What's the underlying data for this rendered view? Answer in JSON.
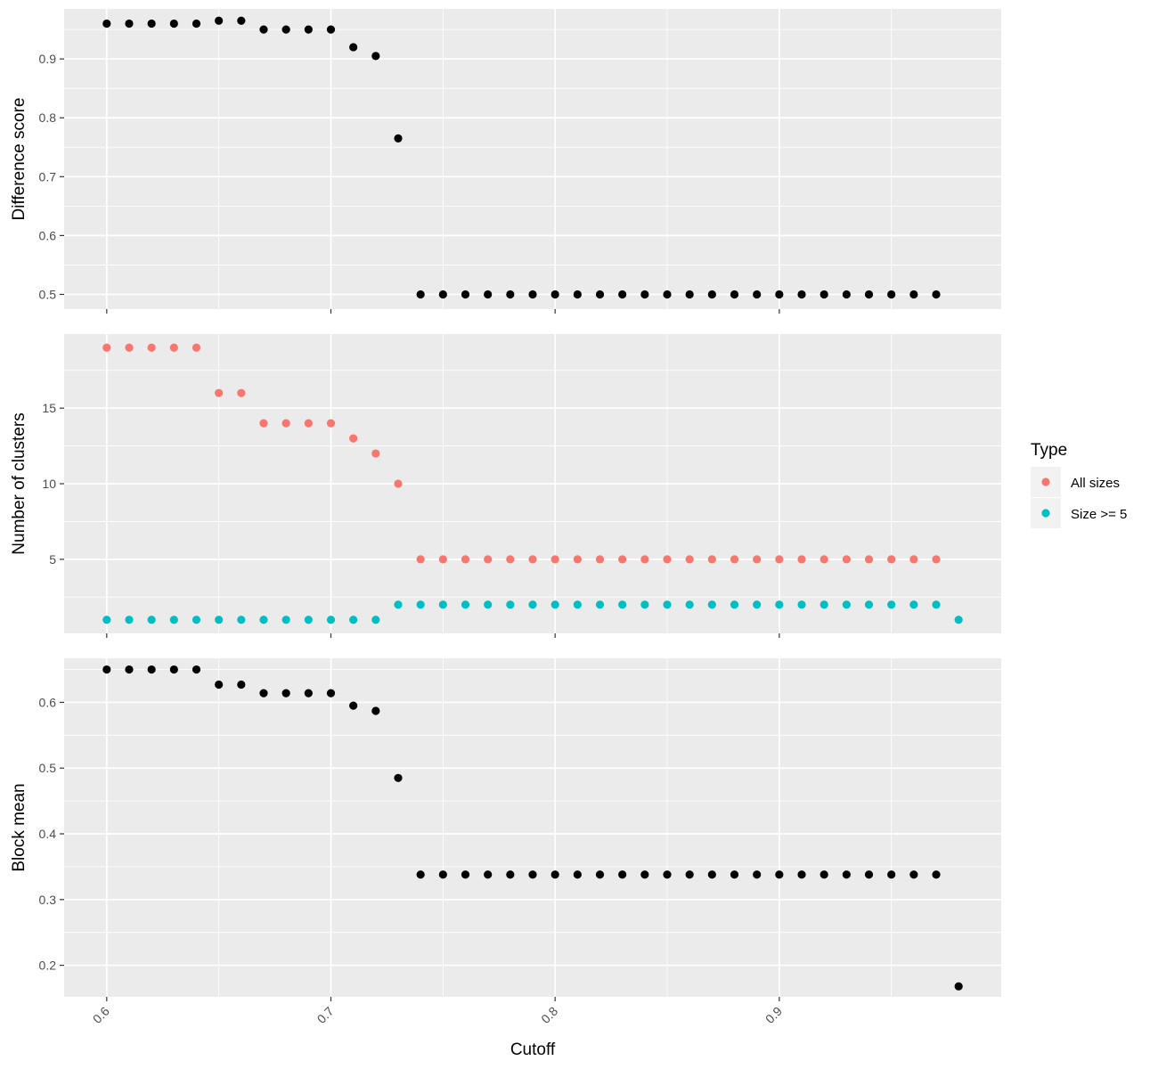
{
  "chart_data": {
    "type": "scatter",
    "xlabel": "Cutoff",
    "xlim": [
      0.581,
      0.999
    ],
    "x_ticks": [
      "0.6",
      "0.7",
      "0.8",
      "0.9"
    ],
    "x_tick_values": [
      0.6,
      0.7,
      0.8,
      0.9
    ],
    "grid": true,
    "legend": {
      "title": "Type",
      "position": "right",
      "entries": [
        {
          "label": "All sizes",
          "color": "#F8766D"
        },
        {
          "label": "Size >= 5",
          "color": "#00BFC4"
        }
      ]
    },
    "panels": [
      {
        "ylabel": "Difference score",
        "ylim": [
          0.475,
          0.985
        ],
        "y_ticks": [
          "0.5",
          "0.6",
          "0.7",
          "0.8",
          "0.9"
        ],
        "y_tick_values": [
          0.5,
          0.6,
          0.7,
          0.8,
          0.9
        ],
        "series": [
          {
            "color": "#000000",
            "x": [
              0.6,
              0.61,
              0.62,
              0.63,
              0.64,
              0.65,
              0.66,
              0.67,
              0.68,
              0.69,
              0.7,
              0.71,
              0.72,
              0.73,
              0.74,
              0.75,
              0.76,
              0.77,
              0.78,
              0.79,
              0.8,
              0.81,
              0.82,
              0.83,
              0.84,
              0.85,
              0.86,
              0.87,
              0.88,
              0.89,
              0.9,
              0.91,
              0.92,
              0.93,
              0.94,
              0.95,
              0.96,
              0.97
            ],
            "y": [
              0.96,
              0.96,
              0.96,
              0.96,
              0.96,
              0.965,
              0.965,
              0.95,
              0.95,
              0.95,
              0.95,
              0.92,
              0.905,
              0.765,
              0.5,
              0.5,
              0.5,
              0.5,
              0.5,
              0.5,
              0.5,
              0.5,
              0.5,
              0.5,
              0.5,
              0.5,
              0.5,
              0.5,
              0.5,
              0.5,
              0.5,
              0.5,
              0.5,
              0.5,
              0.5,
              0.5,
              0.5,
              0.5
            ]
          }
        ]
      },
      {
        "ylabel": "Number of clusters",
        "ylim": [
          0.1,
          19.9
        ],
        "y_ticks": [
          "5",
          "10",
          "15"
        ],
        "y_tick_values": [
          5,
          10,
          15
        ],
        "series": [
          {
            "name": "All sizes",
            "color": "#F8766D",
            "x": [
              0.6,
              0.61,
              0.62,
              0.63,
              0.64,
              0.65,
              0.66,
              0.67,
              0.68,
              0.69,
              0.7,
              0.71,
              0.72,
              0.73,
              0.74,
              0.75,
              0.76,
              0.77,
              0.78,
              0.79,
              0.8,
              0.81,
              0.82,
              0.83,
              0.84,
              0.85,
              0.86,
              0.87,
              0.88,
              0.89,
              0.9,
              0.91,
              0.92,
              0.93,
              0.94,
              0.95,
              0.96,
              0.97
            ],
            "y": [
              19,
              19,
              19,
              19,
              19,
              16,
              16,
              14,
              14,
              14,
              14,
              13,
              12,
              10,
              5,
              5,
              5,
              5,
              5,
              5,
              5,
              5,
              5,
              5,
              5,
              5,
              5,
              5,
              5,
              5,
              5,
              5,
              5,
              5,
              5,
              5,
              5,
              5
            ]
          },
          {
            "name": "Size >= 5",
            "color": "#00BFC4",
            "x": [
              0.6,
              0.61,
              0.62,
              0.63,
              0.64,
              0.65,
              0.66,
              0.67,
              0.68,
              0.69,
              0.7,
              0.71,
              0.72,
              0.73,
              0.74,
              0.75,
              0.76,
              0.77,
              0.78,
              0.79,
              0.8,
              0.81,
              0.82,
              0.83,
              0.84,
              0.85,
              0.86,
              0.87,
              0.88,
              0.89,
              0.9,
              0.91,
              0.92,
              0.93,
              0.94,
              0.95,
              0.96,
              0.97,
              0.98
            ],
            "y": [
              1,
              1,
              1,
              1,
              1,
              1,
              1,
              1,
              1,
              1,
              1,
              1,
              1,
              2,
              2,
              2,
              2,
              2,
              2,
              2,
              2,
              2,
              2,
              2,
              2,
              2,
              2,
              2,
              2,
              2,
              2,
              2,
              2,
              2,
              2,
              2,
              2,
              2,
              1
            ]
          }
        ]
      },
      {
        "ylabel": "Block mean",
        "ylim": [
          0.152,
          0.667
        ],
        "y_ticks": [
          "0.2",
          "0.3",
          "0.4",
          "0.5",
          "0.6"
        ],
        "y_tick_values": [
          0.2,
          0.3,
          0.4,
          0.5,
          0.6
        ],
        "series": [
          {
            "color": "#000000",
            "x": [
              0.6,
              0.61,
              0.62,
              0.63,
              0.64,
              0.65,
              0.66,
              0.67,
              0.68,
              0.69,
              0.7,
              0.71,
              0.72,
              0.73,
              0.74,
              0.75,
              0.76,
              0.77,
              0.78,
              0.79,
              0.8,
              0.81,
              0.82,
              0.83,
              0.84,
              0.85,
              0.86,
              0.87,
              0.88,
              0.89,
              0.9,
              0.91,
              0.92,
              0.93,
              0.94,
              0.95,
              0.96,
              0.97,
              0.98
            ],
            "y": [
              0.65,
              0.65,
              0.65,
              0.65,
              0.65,
              0.627,
              0.627,
              0.614,
              0.614,
              0.614,
              0.614,
              0.595,
              0.587,
              0.485,
              0.338,
              0.338,
              0.338,
              0.338,
              0.338,
              0.338,
              0.338,
              0.338,
              0.338,
              0.338,
              0.338,
              0.338,
              0.338,
              0.338,
              0.338,
              0.338,
              0.338,
              0.338,
              0.338,
              0.338,
              0.338,
              0.338,
              0.338,
              0.338,
              0.168
            ]
          }
        ]
      }
    ]
  }
}
